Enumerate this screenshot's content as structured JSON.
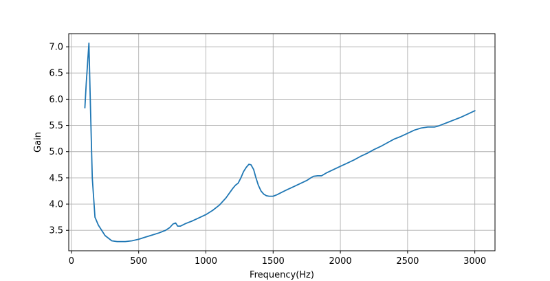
{
  "chart_data": {
    "type": "line",
    "title": "",
    "xlabel": "Frequency(Hz)",
    "ylabel": "Gain",
    "xlim": [
      -20,
      3150
    ],
    "ylim": [
      3.11,
      7.25
    ],
    "grid": true,
    "x_ticks": [
      0,
      500,
      1000,
      1500,
      2000,
      2500,
      3000
    ],
    "x_tick_labels": [
      "0",
      "500",
      "1000",
      "1500",
      "2000",
      "2500",
      "3000"
    ],
    "y_ticks": [
      3.5,
      4.0,
      4.5,
      5.0,
      5.5,
      6.0,
      6.5,
      7.0
    ],
    "y_tick_labels": [
      "3.5",
      "4.0",
      "4.5",
      "5.0",
      "5.5",
      "6.0",
      "6.5",
      "7.0"
    ],
    "colors": {
      "line": "#1f77b4",
      "grid": "#b0b0b0"
    },
    "series": [
      {
        "x": [
          100,
          110,
          130,
          140,
          155,
          175,
          200,
          250,
          300,
          340,
          400,
          450,
          500,
          550,
          600,
          650,
          700,
          730,
          755,
          775,
          790,
          810,
          850,
          900,
          950,
          1000,
          1050,
          1100,
          1150,
          1200,
          1220,
          1240,
          1260,
          1280,
          1300,
          1320,
          1335,
          1355,
          1370,
          1390,
          1410,
          1430,
          1450,
          1470,
          1500,
          1530,
          1560,
          1600,
          1650,
          1700,
          1750,
          1780,
          1800,
          1830,
          1860,
          1900,
          1950,
          2000,
          2050,
          2100,
          2150,
          2200,
          2250,
          2300,
          2350,
          2400,
          2450,
          2500,
          2550,
          2600,
          2650,
          2700,
          2730,
          2760,
          2800,
          2850,
          2900,
          2950,
          3000
        ],
        "y": [
          5.84,
          6.3,
          7.07,
          6.0,
          4.5,
          3.75,
          3.6,
          3.4,
          3.3,
          3.285,
          3.285,
          3.3,
          3.33,
          3.37,
          3.41,
          3.45,
          3.5,
          3.55,
          3.62,
          3.64,
          3.58,
          3.58,
          3.63,
          3.68,
          3.74,
          3.8,
          3.88,
          3.98,
          4.12,
          4.3,
          4.36,
          4.4,
          4.5,
          4.62,
          4.7,
          4.76,
          4.75,
          4.66,
          4.52,
          4.36,
          4.25,
          4.19,
          4.16,
          4.15,
          4.15,
          4.18,
          4.22,
          4.27,
          4.33,
          4.39,
          4.45,
          4.5,
          4.53,
          4.54,
          4.54,
          4.6,
          4.66,
          4.72,
          4.78,
          4.84,
          4.91,
          4.97,
          5.04,
          5.1,
          5.17,
          5.24,
          5.29,
          5.35,
          5.41,
          5.45,
          5.47,
          5.47,
          5.49,
          5.52,
          5.56,
          5.61,
          5.66,
          5.72,
          5.78
        ]
      }
    ]
  }
}
